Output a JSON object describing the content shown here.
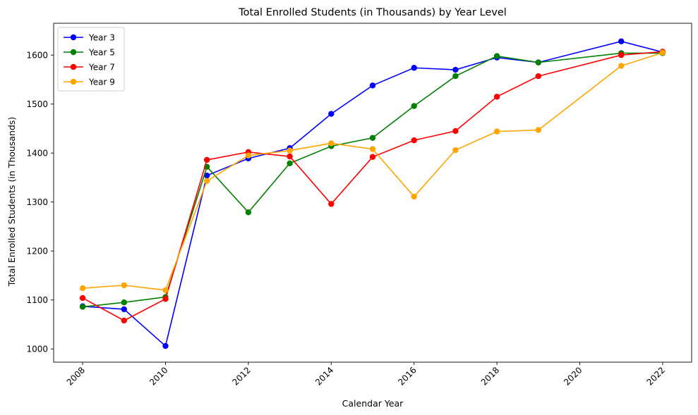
{
  "chart_data": {
    "type": "line",
    "title": "Total Enrolled Students (in Thousands) by Year Level",
    "xlabel": "Calendar Year",
    "ylabel": "Total Enrolled Students (in Thousands)",
    "xlim": [
      2007.3,
      2022.7
    ],
    "ylim": [
      973,
      1665
    ],
    "xticks": [
      2008,
      2010,
      2012,
      2014,
      2016,
      2018,
      2020,
      2022
    ],
    "yticks": [
      1000,
      1100,
      1200,
      1300,
      1400,
      1500,
      1600
    ],
    "x": [
      2008,
      2009,
      2010,
      2011,
      2012,
      2013,
      2014,
      2015,
      2016,
      2017,
      2018,
      2019,
      2021,
      2022
    ],
    "grid": false,
    "legend_position": "top-left",
    "series": [
      {
        "name": "Year 3",
        "color": "#0000ff",
        "values": [
          1087,
          1081,
          1006,
          1354,
          1389,
          1410,
          1480,
          1538,
          1574,
          1570,
          1595,
          1585,
          1628,
          1606
        ]
      },
      {
        "name": "Year 5",
        "color": "#008000",
        "values": [
          1086,
          1095,
          1106,
          1372,
          1279,
          1379,
          1414,
          1431,
          1496,
          1557,
          1598,
          1585,
          1604,
          1604
        ]
      },
      {
        "name": "Year 7",
        "color": "#ff0000",
        "values": [
          1104,
          1058,
          1102,
          1386,
          1402,
          1393,
          1296,
          1392,
          1426,
          1445,
          1515,
          1557,
          1600,
          1607
        ]
      },
      {
        "name": "Year 9",
        "color": "#ffa500",
        "values": [
          1124,
          1130,
          1120,
          1343,
          1395,
          1405,
          1420,
          1408,
          1311,
          1406,
          1444,
          1447,
          1578,
          1605
        ]
      }
    ]
  }
}
